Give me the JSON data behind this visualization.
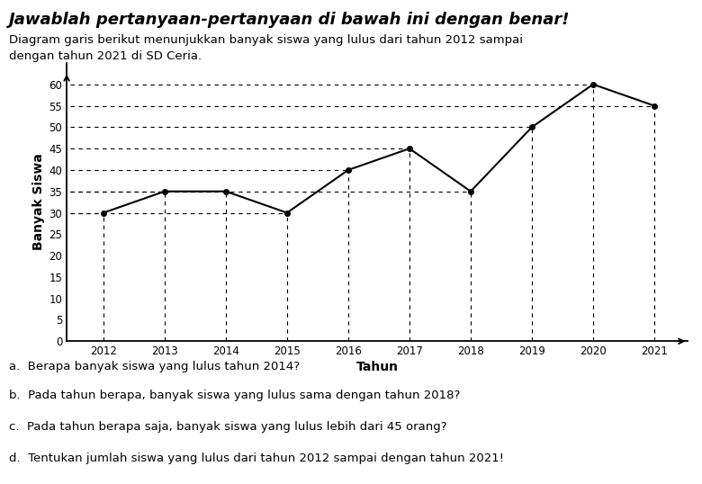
{
  "title": "Jawablah pertanyaan-pertanyaan di bawah ini dengan benar!",
  "subtitle_line1": "Diagram garis berikut menunjukkan banyak siswa yang lulus dari tahun 2012 sampai",
  "subtitle_line2": "dengan tahun 2021 di SD Ceria.",
  "years": [
    2012,
    2013,
    2014,
    2015,
    2016,
    2017,
    2018,
    2019,
    2020,
    2021
  ],
  "values": [
    30,
    35,
    35,
    30,
    40,
    45,
    35,
    50,
    60,
    55
  ],
  "xlabel": "Tahun",
  "ylabel": "Banyak Siswa",
  "ylim": [
    0,
    65
  ],
  "yticks": [
    0,
    5,
    10,
    15,
    20,
    25,
    30,
    35,
    40,
    45,
    50,
    55,
    60
  ],
  "line_color": "#000000",
  "background_color": "#ffffff",
  "questions": [
    "a.  Berapa banyak siswa yang lulus tahun 2014?",
    "b.  Pada tahun berapa, banyak siswa yang lulus sama dengan tahun 2018?",
    "c.  Pada tahun berapa saja, banyak siswa yang lulus lebih dari 45 orang?",
    "d.  Tentukan jumlah siswa yang lulus dari tahun 2012 sampai dengan tahun 2021!"
  ],
  "fig_width": 7.8,
  "fig_height": 5.38,
  "dpi": 100
}
